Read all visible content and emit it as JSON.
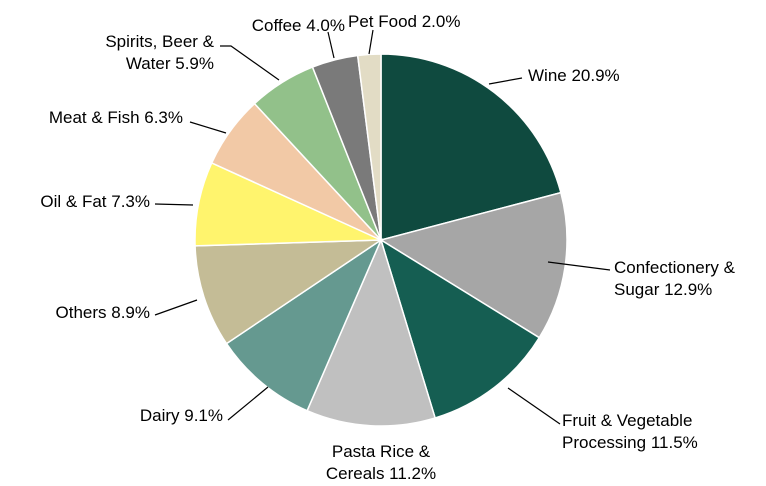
{
  "chart_data": {
    "type": "pie",
    "title": "",
    "unit": "%",
    "slices": [
      {
        "label": "Wine",
        "value": 20.9,
        "label_lines": [
          "Wine 20.9%"
        ],
        "color": "#0f4a3f"
      },
      {
        "label": "Confectionery & Sugar",
        "value": 12.9,
        "label_lines": [
          "Confectionery &",
          "Sugar 12.9%"
        ],
        "color": "#a6a6a6"
      },
      {
        "label": "Fruit & Vegetable Processing",
        "value": 11.5,
        "label_lines": [
          "Fruit & Vegetable",
          "Processing 11.5%"
        ],
        "color": "#155e52"
      },
      {
        "label": "Pasta Rice & Cereals",
        "value": 11.2,
        "label_lines": [
          "Pasta Rice &",
          "Cereals 11.2%"
        ],
        "color": "#c0c0c0"
      },
      {
        "label": "Dairy",
        "value": 9.1,
        "label_lines": [
          "Dairy  9.1%"
        ],
        "color": "#659990"
      },
      {
        "label": "Others",
        "value": 8.9,
        "label_lines": [
          "Others 8.9%"
        ],
        "color": "#c4bc96"
      },
      {
        "label": "Oil & Fat",
        "value": 7.3,
        "label_lines": [
          "Oil & Fat 7.3%"
        ],
        "color": "#fff46d"
      },
      {
        "label": "Meat & Fish",
        "value": 6.3,
        "label_lines": [
          "Meat & Fish 6.3%"
        ],
        "color": "#f2c9a6"
      },
      {
        "label": "Spirits, Beer & Water",
        "value": 5.9,
        "label_lines": [
          "Spirits, Beer &",
          "Water 5.9%"
        ],
        "color": "#92c18a"
      },
      {
        "label": "Coffee",
        "value": 4.0,
        "label_lines": [
          "Coffee 4.0%"
        ],
        "color": "#7a7a7a"
      },
      {
        "label": "Pet Food",
        "value": 2.0,
        "label_lines": [
          "Pet Food 2.0%"
        ],
        "color": "#e2dcc5"
      }
    ],
    "start": "top",
    "direction": "clockwise",
    "legend": "none",
    "data_labels": "outside"
  }
}
